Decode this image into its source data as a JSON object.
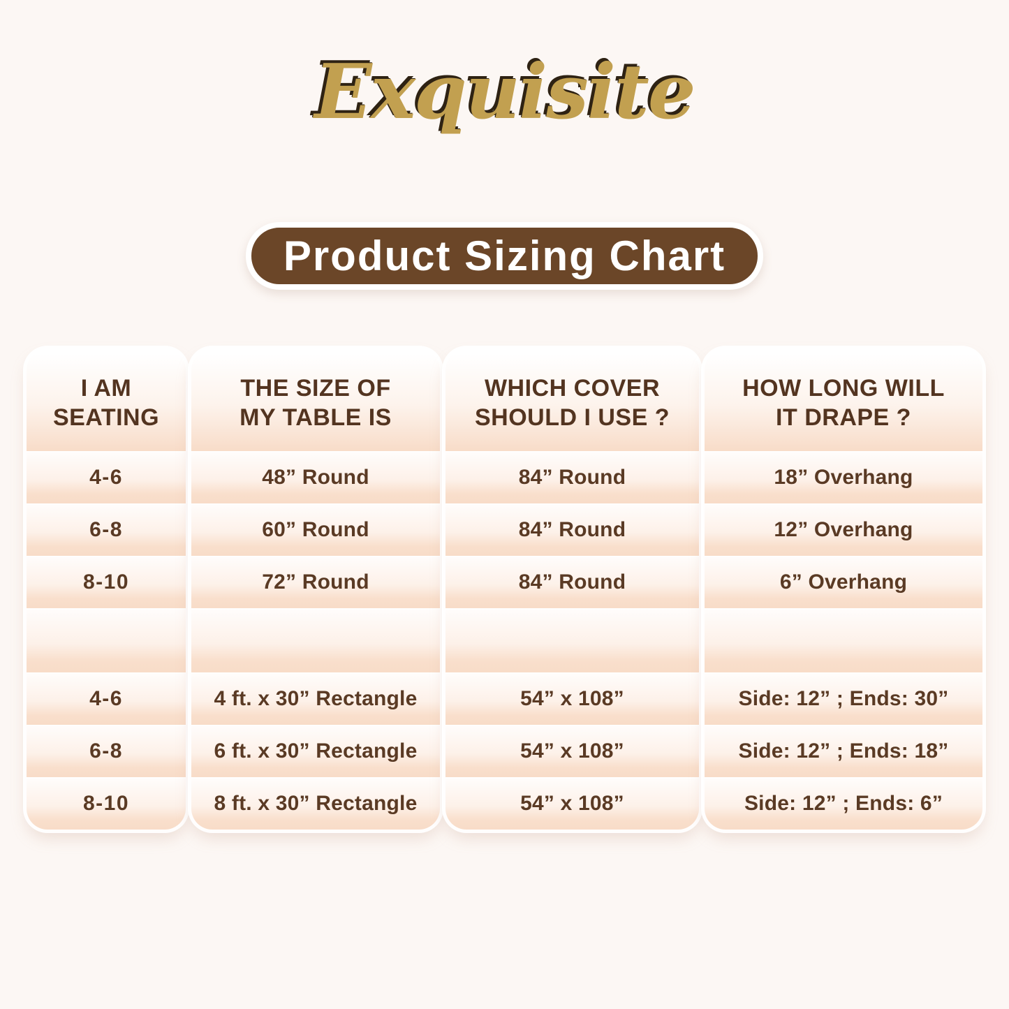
{
  "logo": {
    "text": "Exquisite"
  },
  "banner": {
    "label": "Product Sizing Chart"
  },
  "colors": {
    "background": "#fcf7f4",
    "banner_brown": "#6b4628",
    "header_text_brown": "#533420",
    "cell_text_brown": "#5a3a24",
    "logo_gold": "#c2a050",
    "row_peach": "#f8dcc8"
  },
  "table": {
    "columns": [
      {
        "id": "seating",
        "header": "I AM SEATING",
        "header_lines": [
          "I AM",
          "SEATING"
        ]
      },
      {
        "id": "table-size",
        "header": "THE SIZE OF MY TABLE IS",
        "header_lines": [
          "THE SIZE OF",
          "MY TABLE IS"
        ]
      },
      {
        "id": "cover",
        "header": "WHICH COVER SHOULD I USE ?",
        "header_lines": [
          "WHICH COVER",
          "SHOULD I USE ?"
        ]
      },
      {
        "id": "drape",
        "header": "HOW LONG WILL IT DRAPE ?",
        "header_lines": [
          "HOW LONG WILL",
          "IT DRAPE ?"
        ]
      }
    ],
    "rows": [
      {
        "cells": [
          "4-6",
          "48” Round",
          "84” Round",
          "18” Overhang"
        ]
      },
      {
        "cells": [
          "6-8",
          "60” Round",
          "84” Round",
          "12” Overhang"
        ]
      },
      {
        "cells": [
          "8-10",
          "72” Round",
          "84” Round",
          "6” Overhang"
        ]
      },
      {
        "cells": [
          "",
          "",
          "",
          ""
        ]
      },
      {
        "cells": [
          "4-6",
          "4 ft. x 30” Rectangle",
          "54” x 108”",
          "Side: 12” ; Ends: 30”"
        ]
      },
      {
        "cells": [
          "6-8",
          "6 ft. x 30” Rectangle",
          "54” x 108”",
          "Side: 12” ; Ends: 18”"
        ]
      },
      {
        "cells": [
          "8-10",
          "8 ft. x 30” Rectangle",
          "54” x 108”",
          "Side: 12” ; Ends: 6”"
        ]
      }
    ]
  },
  "chart_data": {
    "type": "table",
    "title": "Product Sizing Chart",
    "columns": [
      "I AM SEATING",
      "THE SIZE OF MY TABLE IS",
      "WHICH COVER SHOULD I USE ?",
      "HOW LONG WILL IT DRAPE ?"
    ],
    "rows": [
      [
        "4-6",
        "48” Round",
        "84” Round",
        "18” Overhang"
      ],
      [
        "6-8",
        "60” Round",
        "84” Round",
        "12” Overhang"
      ],
      [
        "8-10",
        "72” Round",
        "84” Round",
        "6” Overhang"
      ],
      [
        "",
        "",
        "",
        ""
      ],
      [
        "4-6",
        "4 ft. x 30” Rectangle",
        "54” x 108”",
        "Side: 12” ; Ends: 30”"
      ],
      [
        "6-8",
        "6 ft. x 30” Rectangle",
        "54” x 108”",
        "Side: 12” ; Ends: 18”"
      ],
      [
        "8-10",
        "8 ft. x 30” Rectangle",
        "54” x 108”",
        "Side: 12” ; Ends: 6”"
      ]
    ]
  }
}
